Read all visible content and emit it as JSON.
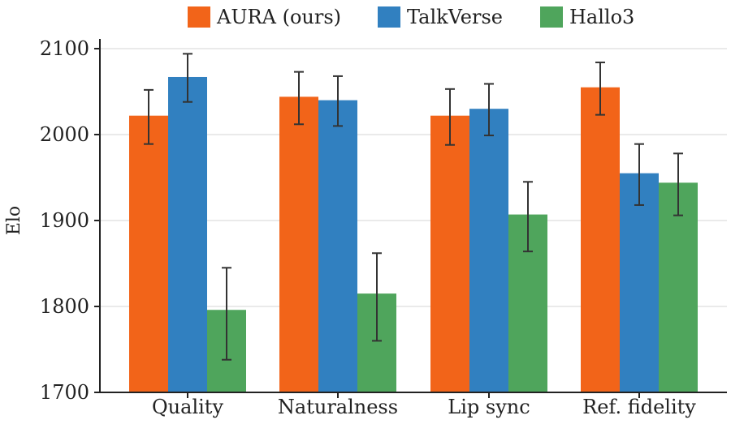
{
  "chart_data": {
    "type": "bar",
    "ylabel": "Elo",
    "xlabel": "",
    "ylim": [
      1700,
      2100
    ],
    "yticks": [
      1700,
      1800,
      1900,
      2000,
      2100
    ],
    "grid": "horizontal",
    "legend_position": "top",
    "categories": [
      "Quality",
      "Naturalness",
      "Lip sync",
      "Ref. fidelity"
    ],
    "series": [
      {
        "name": "AURA (ours)",
        "color": "#f26419",
        "values": [
          2022,
          2044,
          2022,
          2055
        ],
        "error_low": [
          1989,
          2012,
          1988,
          2023
        ],
        "error_high": [
          2052,
          2073,
          2053,
          2084
        ]
      },
      {
        "name": "TalkVerse",
        "color": "#3180c0",
        "values": [
          2067,
          2040,
          2030,
          1955
        ],
        "error_low": [
          2038,
          2010,
          1999,
          1918
        ],
        "error_high": [
          2094,
          2068,
          2059,
          1989
        ]
      },
      {
        "name": "Hallo3",
        "color": "#4fa55c",
        "values": [
          1796,
          1815,
          1907,
          1944
        ],
        "error_low": [
          1738,
          1760,
          1864,
          1906
        ],
        "error_high": [
          1845,
          1862,
          1945,
          1978
        ]
      }
    ]
  }
}
